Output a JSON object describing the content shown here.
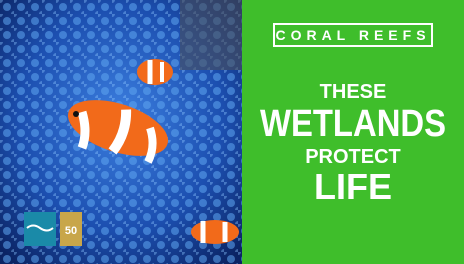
{
  "header": {
    "label": "CORAL REEFS"
  },
  "headline": {
    "lines": [
      "THESE",
      "WETLANDS",
      "PROTECT",
      "LIFE"
    ]
  },
  "logo": {
    "badge": "50"
  }
}
